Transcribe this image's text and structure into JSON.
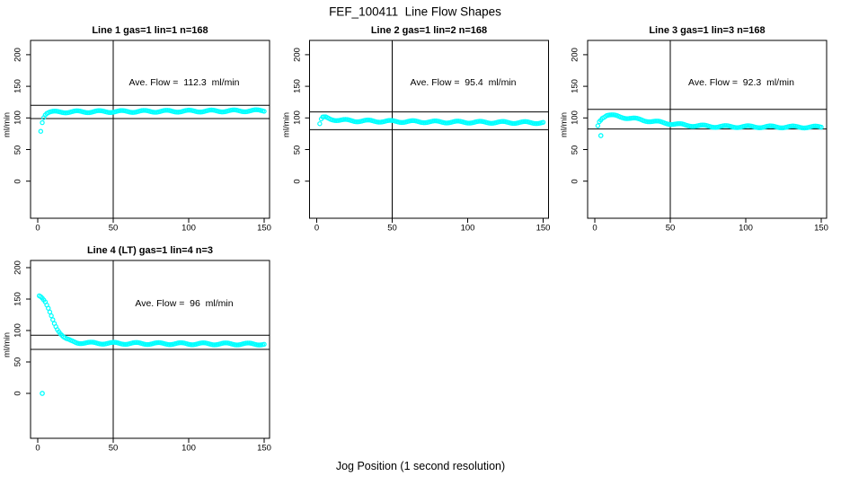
{
  "title": "FEF_100411  Line Flow Shapes",
  "xlabel": "Jog Position (1 second resolution)",
  "marker_color": "#00FFFF",
  "chart_data": [
    {
      "type": "scatter",
      "title": "Line 1 gas=1 lin=1 n=168",
      "annotation": "Ave. Flow =  112.3  ml/min",
      "ave_flow_ml_min": 112.3,
      "ylabel": "ml/min",
      "xticks": [
        0,
        50,
        100,
        150
      ],
      "yticks": [
        0,
        50,
        100,
        150,
        200
      ],
      "xlim": [
        -5,
        155
      ],
      "ylim": [
        0,
        200
      ],
      "grid": false,
      "vline_x": 50,
      "hlines": [
        120,
        99
      ],
      "marker": "open-circle",
      "marker_color": "#00FFFF",
      "keypoints": [
        [
          2,
          80
        ],
        [
          3,
          94
        ],
        [
          4,
          102
        ],
        [
          5,
          106
        ],
        [
          6,
          108
        ],
        [
          8,
          109
        ],
        [
          15,
          109.5
        ],
        [
          40,
          110
        ],
        [
          80,
          110.5
        ],
        [
          120,
          111
        ],
        [
          150,
          111.5
        ]
      ],
      "outliers": []
    },
    {
      "type": "scatter",
      "title": "Line 2 gas=1 lin=2 n=168",
      "annotation": "Ave. Flow =  95.4  ml/min",
      "ave_flow_ml_min": 95.4,
      "ylabel": "ml/min",
      "xticks": [
        0,
        50,
        100,
        150
      ],
      "yticks": [
        0,
        50,
        100,
        150,
        200
      ],
      "xlim": [
        -5,
        155
      ],
      "ylim": [
        0,
        200
      ],
      "grid": false,
      "vline_x": 50,
      "hlines": [
        109.5,
        81.5
      ],
      "marker": "open-circle",
      "marker_color": "#00FFFF",
      "keypoints": [
        [
          2,
          90
        ],
        [
          3,
          97
        ],
        [
          4,
          100
        ],
        [
          6,
          100.5
        ],
        [
          9,
          98.5
        ],
        [
          15,
          96.5
        ],
        [
          25,
          95.5
        ],
        [
          50,
          94.5
        ],
        [
          90,
          93.5
        ],
        [
          150,
          92.5
        ]
      ],
      "outliers": []
    },
    {
      "type": "scatter",
      "title": "Line 3 gas=1 lin=3 n=168",
      "annotation": "Ave. Flow =  92.3  ml/min",
      "ave_flow_ml_min": 92.3,
      "ylabel": "ml/min",
      "xticks": [
        0,
        50,
        100,
        150
      ],
      "yticks": [
        0,
        50,
        100,
        150,
        200
      ],
      "xlim": [
        -5,
        155
      ],
      "ylim": [
        0,
        200
      ],
      "grid": false,
      "vline_x": 50,
      "hlines": [
        113.5,
        82.5
      ],
      "marker": "open-circle",
      "marker_color": "#00FFFF",
      "keypoints": [
        [
          2,
          88
        ],
        [
          3,
          95
        ],
        [
          5,
          101
        ],
        [
          8,
          104.5
        ],
        [
          14,
          103
        ],
        [
          22,
          100
        ],
        [
          32,
          96.5
        ],
        [
          45,
          92.5
        ],
        [
          60,
          88.5
        ],
        [
          80,
          86.5
        ],
        [
          110,
          86
        ],
        [
          150,
          85.5
        ]
      ],
      "outliers": [
        [
          4,
          72
        ]
      ]
    },
    {
      "type": "scatter",
      "title": "Line 4 (LT) gas=1 lin=4 n=3",
      "annotation": "Ave. Flow =  96  ml/min",
      "ave_flow_ml_min": 96,
      "ylabel": "ml/min",
      "xticks": [
        0,
        50,
        100,
        150
      ],
      "yticks": [
        0,
        50,
        100,
        150,
        200
      ],
      "xlim": [
        -5,
        155
      ],
      "ylim": [
        0,
        200
      ],
      "grid": false,
      "vline_x": 50,
      "hlines": [
        92.5,
        70
      ],
      "marker": "open-circle",
      "marker_color": "#00FFFF",
      "keypoints": [
        [
          1,
          156
        ],
        [
          2,
          154
        ],
        [
          3,
          151
        ],
        [
          5,
          144
        ],
        [
          7,
          134
        ],
        [
          9,
          123
        ],
        [
          11,
          112
        ],
        [
          13,
          103
        ],
        [
          15,
          96
        ],
        [
          17,
          90
        ],
        [
          19,
          86
        ],
        [
          22,
          83
        ],
        [
          26,
          81
        ],
        [
          35,
          80
        ],
        [
          60,
          79.5
        ],
        [
          100,
          79
        ],
        [
          150,
          78.5
        ]
      ],
      "outliers": [
        [
          3,
          0
        ]
      ]
    }
  ]
}
